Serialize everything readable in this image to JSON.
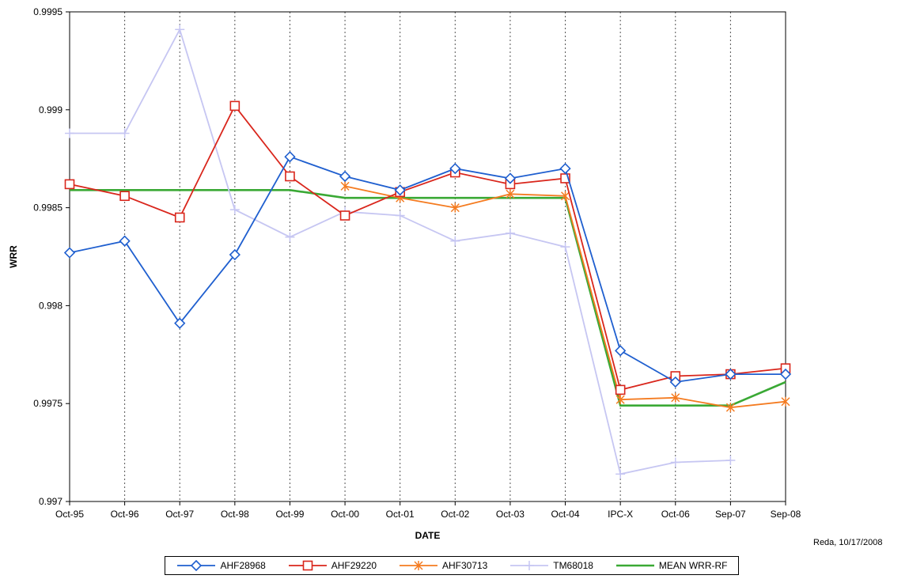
{
  "chart_data": {
    "type": "line",
    "xlabel": "DATE",
    "ylabel": "WRR",
    "categories": [
      "Oct-95",
      "Oct-96",
      "Oct-97",
      "Oct-98",
      "Oct-99",
      "Oct-00",
      "Oct-01",
      "Oct-02",
      "Oct-03",
      "Oct-04",
      "IPC-X",
      "Oct-06",
      "Sep-07",
      "Sep-08"
    ],
    "ylim": [
      0.997,
      0.9995
    ],
    "yticks": [
      "0.997",
      "0.9975",
      "0.998",
      "0.9985",
      "0.999",
      "0.9995"
    ],
    "grid": "vertical dotted",
    "legend_position": "bottom",
    "series": [
      {
        "name": "AHF28968",
        "color": "#1f5fcf",
        "marker": "diamond",
        "values": [
          0.99827,
          0.99833,
          0.99791,
          0.99826,
          0.99876,
          0.99866,
          0.99859,
          0.9987,
          0.99865,
          0.9987,
          0.99777,
          0.99761,
          0.99765,
          0.99765
        ]
      },
      {
        "name": "AHF29220",
        "color": "#d9261c",
        "marker": "square",
        "values": [
          0.99862,
          0.99856,
          0.99845,
          0.99902,
          0.99866,
          0.99846,
          0.99858,
          0.99868,
          0.99862,
          0.99865,
          0.99757,
          0.99764,
          0.99765,
          0.99768
        ]
      },
      {
        "name": "AHF30713",
        "color": "#f47b20",
        "marker": "asterisk",
        "values": [
          null,
          null,
          null,
          null,
          null,
          0.99861,
          0.99855,
          0.9985,
          0.99857,
          0.99856,
          0.99752,
          0.99753,
          0.99748,
          0.99751
        ]
      },
      {
        "name": "TM68018",
        "color": "#c6c6f2",
        "marker": "plus",
        "values": [
          0.99888,
          0.99888,
          0.99941,
          0.99849,
          0.99835,
          0.99848,
          0.99846,
          0.99833,
          0.99837,
          0.9983,
          0.99714,
          0.9972,
          0.99721,
          null
        ]
      },
      {
        "name": "MEAN WRR-RF",
        "color": "#3aa935",
        "marker": "none",
        "values": [
          0.99859,
          0.99859,
          0.99859,
          0.99859,
          0.99859,
          0.99855,
          0.99855,
          0.99855,
          0.99855,
          0.99855,
          0.99749,
          0.99749,
          0.99749,
          0.99761
        ]
      }
    ]
  },
  "credit": "Reda, 10/17/2008"
}
